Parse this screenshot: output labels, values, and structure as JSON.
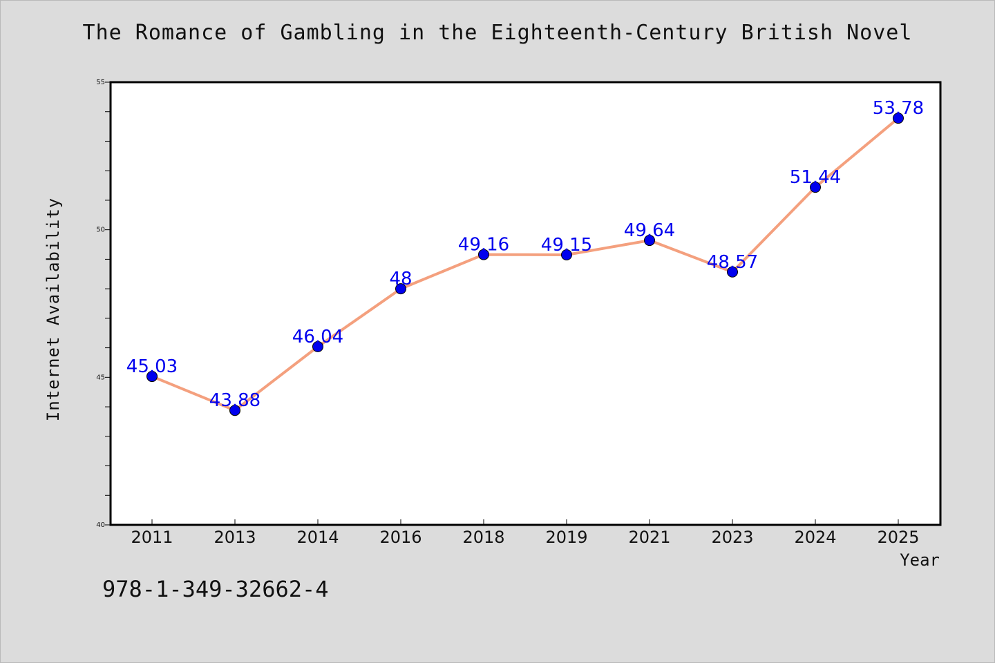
{
  "chart_data": {
    "type": "line",
    "title": "The Romance of Gambling in the Eighteenth-Century British Novel",
    "xlabel": "Year",
    "ylabel": "Internet Availability",
    "categories": [
      "2011",
      "2013",
      "2014",
      "2016",
      "2018",
      "2019",
      "2021",
      "2023",
      "2024",
      "2025"
    ],
    "series": [
      {
        "values": [
          45.03,
          43.88,
          46.04,
          48,
          49.16,
          49.15,
          49.64,
          48.57,
          51.44,
          53.78
        ],
        "data_labels": [
          "45.03",
          "43.88",
          "46.04",
          "48",
          "49.16",
          "49.15",
          "49.64",
          "48.57",
          "51.44",
          "53.78"
        ],
        "line_color": "#f4a07e",
        "marker_color": "#0000ee",
        "label_color": "#0000ee"
      }
    ],
    "ylim": [
      40,
      55
    ],
    "y_ticks": [
      "40",
      "45",
      "50",
      "55"
    ],
    "y_minor_step": 1,
    "grid": false,
    "legend": "none"
  },
  "footer": {
    "code": "978-1-349-32662-4"
  },
  "colors": {
    "background": "#dcdcdc",
    "plot_background": "#ffffff"
  }
}
